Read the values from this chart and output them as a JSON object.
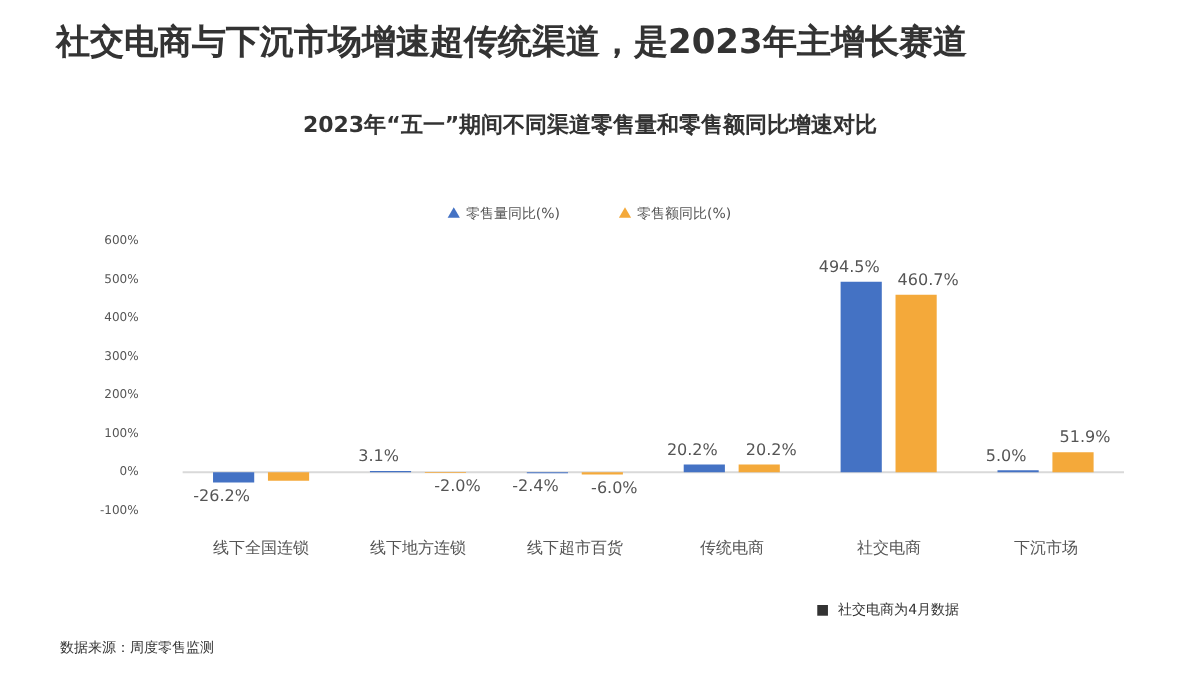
{
  "chart_data": {
    "type": "bar",
    "title": "社交电商与下沉市场增速超传统渠道，是2023年主增长赛道",
    "subtitle": "2023年“五一”期间不同渠道零售量和零售额同比增速对比",
    "categories": [
      "线下全国连锁",
      "线下地方连锁",
      "线下超市百货",
      "传统电商",
      "社交电商",
      "下沉市场"
    ],
    "series": [
      {
        "name": "零售量同比(%)",
        "color": "#4472c4",
        "values": [
          -26.2,
          3.1,
          -2.4,
          20.2,
          494.5,
          5.0
        ],
        "value_labels": [
          "-26.2%",
          "3.1%",
          "-2.4%",
          "20.2%",
          "494.5%",
          "5.0%"
        ]
      },
      {
        "name": "零售额同比(%)",
        "color": "#f4a93a",
        "values": [
          -22,
          -2.0,
          -6.0,
          20.2,
          460.7,
          51.9
        ],
        "value_labels": [
          null,
          "-2.0%",
          "-6.0%",
          "20.2%",
          "460.7%",
          "51.9%"
        ]
      }
    ],
    "ylim": [
      -100,
      600
    ],
    "yticks": [
      {
        "value": -100,
        "label": "-100%"
      },
      {
        "value": 0,
        "label": "0%"
      },
      {
        "value": 100,
        "label": "100%"
      },
      {
        "value": 200,
        "label": "200%"
      },
      {
        "value": 300,
        "label": "300%"
      },
      {
        "value": 400,
        "label": "400%"
      },
      {
        "value": 500,
        "label": "500%"
      },
      {
        "value": 600,
        "label": "600%"
      }
    ],
    "ref_lines": [
      {
        "axis": "y",
        "value": 0,
        "color": "#d9d9d9"
      }
    ],
    "grid": false,
    "legend": "top",
    "marker": "triangle",
    "annotations": [
      "■  社交电商为4月数据",
      "数据来源：周度零售监测"
    ]
  }
}
